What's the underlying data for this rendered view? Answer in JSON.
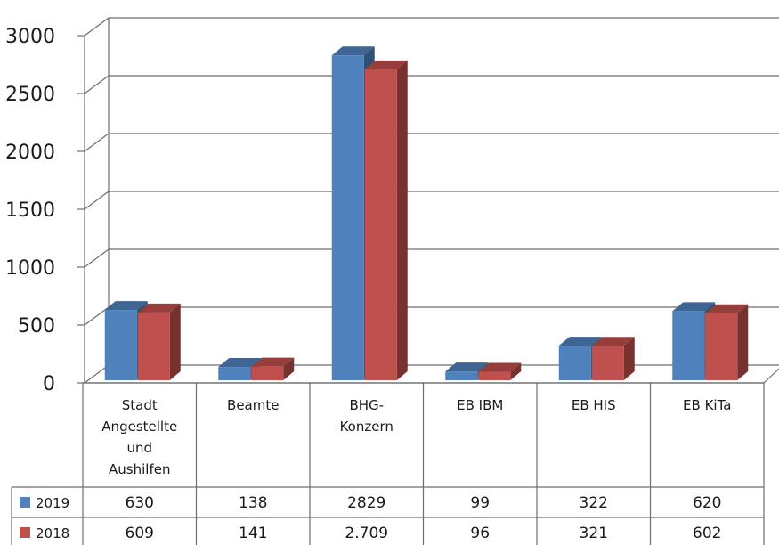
{
  "chart_data": {
    "type": "bar",
    "categories": [
      [
        "Stadt",
        "Angestellte",
        "und",
        "Aushilfen"
      ],
      [
        "Beamte"
      ],
      [
        "BHG-",
        "Konzern"
      ],
      [
        "EB IBM"
      ],
      [
        "EB HIS"
      ],
      [
        "EB KiTa"
      ]
    ],
    "series": [
      {
        "name": "2019",
        "color": "#4f81bd",
        "values": [
          630,
          138,
          2829,
          99,
          322,
          620
        ],
        "labels": [
          "630",
          "138",
          "2829",
          "99",
          "322",
          "620"
        ]
      },
      {
        "name": "2018",
        "color": "#c0504d",
        "values": [
          609,
          141,
          2709,
          96,
          321,
          602
        ],
        "labels": [
          "609",
          "141",
          "2.709",
          "96",
          "321",
          "602"
        ]
      }
    ],
    "ylim": [
      0,
      3000
    ],
    "yticks": [
      "0",
      "500",
      "1000",
      "1500",
      "2000",
      "2500",
      "3000"
    ],
    "grid": true,
    "data_table": true
  }
}
